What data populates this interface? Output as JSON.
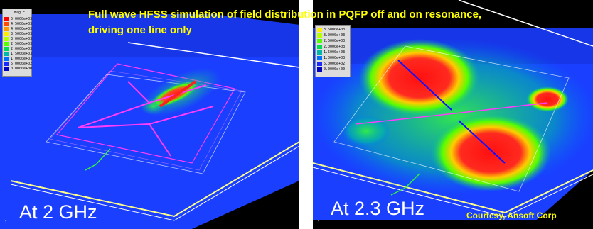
{
  "title": {
    "line1": "Full wave HFSS simulation of field distribution in PQFP off and on resonance,",
    "line2": "driving one line only"
  },
  "left_panel": {
    "frequency_label": "At 2 GHz",
    "legend": {
      "header": "Mag E",
      "entries": [
        {
          "label": "5.0000e+03",
          "color": "#ff0000"
        },
        {
          "label": "4.5000e+03",
          "color": "#ff4a00"
        },
        {
          "label": "4.0000e+03",
          "color": "#ff9a00"
        },
        {
          "label": "3.5000e+03",
          "color": "#ffee00"
        },
        {
          "label": "3.0000e+03",
          "color": "#b8ff00"
        },
        {
          "label": "2.5000e+03",
          "color": "#55ff00"
        },
        {
          "label": "2.0000e+03",
          "color": "#00dd55"
        },
        {
          "label": "1.5000e+03",
          "color": "#00b8a8"
        },
        {
          "label": "1.0000e+03",
          "color": "#0070ff"
        },
        {
          "label": "5.0000e+02",
          "color": "#1a2aff"
        },
        {
          "label": "0.0000e+00",
          "color": "#0000c0"
        }
      ]
    }
  },
  "right_panel": {
    "frequency_label": "At 2.3 GHz",
    "courtesy": "Courtesy, Ansoft Corp",
    "legend": {
      "entries": [
        {
          "label": "3.5000e+03",
          "color": "#ffee00"
        },
        {
          "label": "3.0000e+03",
          "color": "#b8ff00"
        },
        {
          "label": "2.5000e+03",
          "color": "#55ff00"
        },
        {
          "label": "2.0000e+03",
          "color": "#00dd55"
        },
        {
          "label": "1.5000e+03",
          "color": "#00b8a8"
        },
        {
          "label": "1.0000e+03",
          "color": "#0070ff"
        },
        {
          "label": "5.0000e+02",
          "color": "#1a2aff"
        },
        {
          "label": "0.0000e+00",
          "color": "#0000c0"
        }
      ]
    }
  },
  "colors": {
    "substrate": "#1a3fff",
    "background": "#000000",
    "trace": "#ff3cff",
    "package_outline": "#ffffff",
    "ground_edge": "#ffff66",
    "title_text": "#ffff00"
  }
}
